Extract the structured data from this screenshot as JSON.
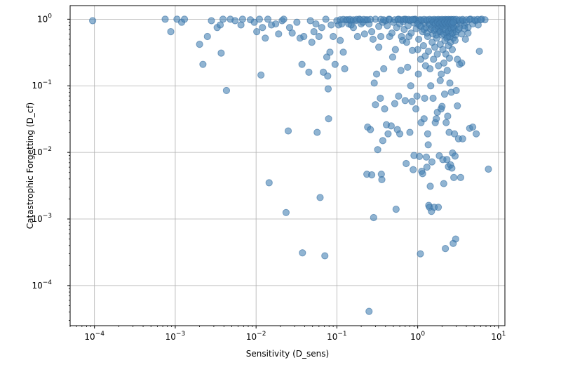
{
  "chart_data": {
    "type": "scatter",
    "xscale": "log",
    "yscale": "log",
    "xlim": [
      5e-05,
      12
    ],
    "ylim": [
      2.5e-05,
      1.6
    ],
    "grid": true,
    "xlabel": "Sensitivity (D_sens)",
    "ylabel": "Catastrophic Forgetting (D_cf)",
    "color": "#4682b4",
    "x_ticks": [
      {
        "value": 0.0001,
        "base": "10",
        "exp": "−4"
      },
      {
        "value": 0.001,
        "base": "10",
        "exp": "−3"
      },
      {
        "value": 0.01,
        "base": "10",
        "exp": "−2"
      },
      {
        "value": 0.1,
        "base": "10",
        "exp": "−1"
      },
      {
        "value": 1,
        "base": "10",
        "exp": "0"
      },
      {
        "value": 10,
        "base": "10",
        "exp": "1"
      }
    ],
    "y_ticks": [
      {
        "value": 0.0001,
        "base": "10",
        "exp": "−4"
      },
      {
        "value": 0.001,
        "base": "10",
        "exp": "−3"
      },
      {
        "value": 0.01,
        "base": "10",
        "exp": "−2"
      },
      {
        "value": 0.1,
        "base": "10",
        "exp": "−1"
      },
      {
        "value": 1,
        "base": "10",
        "exp": "0"
      }
    ],
    "points": [
      [
        9.5e-05,
        0.95
      ],
      [
        0.00075,
        1.0
      ],
      [
        0.00088,
        0.65
      ],
      [
        0.00105,
        1.0
      ],
      [
        0.0012,
        0.9
      ],
      [
        0.0013,
        1.0
      ],
      [
        0.002,
        0.42
      ],
      [
        0.0022,
        0.21
      ],
      [
        0.0025,
        0.55
      ],
      [
        0.0028,
        0.95
      ],
      [
        0.0033,
        0.75
      ],
      [
        0.0036,
        0.82
      ],
      [
        0.0037,
        0.31
      ],
      [
        0.0039,
        1.0
      ],
      [
        0.0043,
        0.085
      ],
      [
        0.0048,
        1.0
      ],
      [
        0.0055,
        0.95
      ],
      [
        0.0065,
        0.82
      ],
      [
        0.0068,
        1.0
      ],
      [
        0.0085,
        0.98
      ],
      [
        0.0095,
        0.9
      ],
      [
        0.0102,
        0.65
      ],
      [
        0.011,
        1.0
      ],
      [
        0.0115,
        0.145
      ],
      [
        0.012,
        0.75
      ],
      [
        0.013,
        0.52
      ],
      [
        0.014,
        1.0
      ],
      [
        0.0145,
        0.0035
      ],
      [
        0.0155,
        0.82
      ],
      [
        0.0175,
        0.85
      ],
      [
        0.019,
        0.6
      ],
      [
        0.021,
        0.95
      ],
      [
        0.022,
        1.0
      ],
      [
        0.0235,
        0.00125
      ],
      [
        0.025,
        0.021
      ],
      [
        0.026,
        0.75
      ],
      [
        0.028,
        0.62
      ],
      [
        0.032,
        0.9
      ],
      [
        0.035,
        0.52
      ],
      [
        0.037,
        0.21
      ],
      [
        0.0375,
        0.00031
      ],
      [
        0.039,
        0.55
      ],
      [
        0.045,
        0.16
      ],
      [
        0.047,
        0.95
      ],
      [
        0.049,
        0.45
      ],
      [
        0.052,
        0.65
      ],
      [
        0.055,
        0.85
      ],
      [
        0.057,
        0.02
      ],
      [
        0.06,
        0.55
      ],
      [
        0.062,
        0.0021
      ],
      [
        0.065,
        0.75
      ],
      [
        0.068,
        0.16
      ],
      [
        0.071,
        0.00028
      ],
      [
        0.073,
        1.0
      ],
      [
        0.075,
        0.27
      ],
      [
        0.077,
        0.14
      ],
      [
        0.078,
        0.09
      ],
      [
        0.079,
        0.032
      ],
      [
        0.082,
        0.32
      ],
      [
        0.085,
        0.82
      ],
      [
        0.09,
        0.55
      ],
      [
        0.095,
        0.21
      ],
      [
        0.1,
        0.95
      ],
      [
        0.105,
        0.82
      ],
      [
        0.11,
        0.48
      ],
      [
        0.115,
        0.85
      ],
      [
        0.12,
        0.32
      ],
      [
        0.125,
        0.18
      ],
      [
        0.13,
        0.98
      ],
      [
        0.14,
        0.85
      ],
      [
        0.15,
        0.95
      ],
      [
        0.16,
        0.75
      ],
      [
        0.18,
        0.55
      ],
      [
        0.2,
        0.85
      ],
      [
        0.22,
        0.6
      ],
      [
        0.235,
        0.0047
      ],
      [
        0.24,
        0.024
      ],
      [
        0.25,
        4.1e-05
      ],
      [
        0.26,
        0.022
      ],
      [
        0.27,
        0.0046
      ],
      [
        0.28,
        0.5
      ],
      [
        0.285,
        0.00105
      ],
      [
        0.29,
        0.11
      ],
      [
        0.3,
        0.052
      ],
      [
        0.31,
        0.15
      ],
      [
        0.32,
        0.011
      ],
      [
        0.33,
        0.38
      ],
      [
        0.345,
        0.065
      ],
      [
        0.355,
        0.0047
      ],
      [
        0.36,
        0.0039
      ],
      [
        0.37,
        0.015
      ],
      [
        0.38,
        0.18
      ],
      [
        0.39,
        0.045
      ],
      [
        0.4,
        0.95
      ],
      [
        0.41,
        0.026
      ],
      [
        0.43,
        0.019
      ],
      [
        0.45,
        0.55
      ],
      [
        0.47,
        0.025
      ],
      [
        0.49,
        0.27
      ],
      [
        0.52,
        0.054
      ],
      [
        0.54,
        0.0014
      ],
      [
        0.56,
        0.022
      ],
      [
        0.58,
        0.07
      ],
      [
        0.6,
        0.019
      ],
      [
        0.62,
        0.17
      ],
      [
        0.65,
        0.48
      ],
      [
        0.7,
        0.06
      ],
      [
        0.72,
        0.0068
      ],
      [
        0.75,
        0.19
      ],
      [
        0.78,
        0.55
      ],
      [
        0.8,
        0.02
      ],
      [
        0.82,
        0.1
      ],
      [
        0.85,
        0.058
      ],
      [
        0.88,
        0.0055
      ],
      [
        0.9,
        0.009
      ],
      [
        0.95,
        0.045
      ],
      [
        0.98,
        0.07
      ],
      [
        1.0,
        0.35
      ],
      [
        1.02,
        0.15
      ],
      [
        1.05,
        0.0087
      ],
      [
        1.08,
        0.0003
      ],
      [
        1.1,
        0.028
      ],
      [
        1.12,
        0.0052
      ],
      [
        1.15,
        0.0048
      ],
      [
        1.2,
        0.032
      ],
      [
        1.22,
        0.065
      ],
      [
        1.25,
        0.2
      ],
      [
        1.28,
        0.0085
      ],
      [
        1.3,
        0.006
      ],
      [
        1.33,
        0.019
      ],
      [
        1.35,
        0.013
      ],
      [
        1.37,
        0.0016
      ],
      [
        1.4,
        0.0015
      ],
      [
        1.43,
        0.0031
      ],
      [
        1.45,
        0.1
      ],
      [
        1.48,
        0.0013
      ],
      [
        1.5,
        0.0072
      ],
      [
        1.55,
        0.065
      ],
      [
        1.6,
        0.0015
      ],
      [
        1.65,
        0.028
      ],
      [
        1.7,
        0.032
      ],
      [
        1.75,
        0.04
      ],
      [
        1.8,
        0.0015
      ],
      [
        1.85,
        0.0089
      ],
      [
        1.9,
        0.12
      ],
      [
        1.95,
        0.045
      ],
      [
        2.0,
        0.049
      ],
      [
        2.05,
        0.0078
      ],
      [
        2.1,
        0.0034
      ],
      [
        2.15,
        0.075
      ],
      [
        2.2,
        0.00036
      ],
      [
        2.25,
        0.028
      ],
      [
        2.3,
        0.0078
      ],
      [
        2.35,
        0.035
      ],
      [
        2.4,
        0.0061
      ],
      [
        2.45,
        0.02
      ],
      [
        2.5,
        0.11
      ],
      [
        2.55,
        0.0065
      ],
      [
        2.6,
        0.08
      ],
      [
        2.65,
        0.0058
      ],
      [
        2.7,
        0.0098
      ],
      [
        2.75,
        0.00043
      ],
      [
        2.8,
        0.0042
      ],
      [
        2.85,
        0.019
      ],
      [
        2.9,
        0.0088
      ],
      [
        2.95,
        0.0005
      ],
      [
        3.0,
        0.085
      ],
      [
        3.1,
        0.05
      ],
      [
        3.2,
        0.016
      ],
      [
        3.3,
        0.21
      ],
      [
        3.4,
        0.0042
      ],
      [
        3.6,
        0.016
      ],
      [
        3.9,
        0.5
      ],
      [
        4.2,
        0.62
      ],
      [
        4.4,
        0.023
      ],
      [
        4.8,
        0.024
      ],
      [
        5.3,
        0.019
      ],
      [
        5.8,
        0.33
      ],
      [
        7.5,
        0.0056
      ],
      [
        0.15,
        0.82
      ],
      [
        0.17,
        0.95
      ],
      [
        0.19,
        1.0
      ],
      [
        0.21,
        0.9
      ],
      [
        0.23,
        0.98
      ],
      [
        0.25,
        0.85
      ],
      [
        0.27,
        0.65
      ],
      [
        0.3,
        1.0
      ],
      [
        0.33,
        0.78
      ],
      [
        0.35,
        0.55
      ],
      [
        0.37,
        0.9
      ],
      [
        0.42,
        0.8
      ],
      [
        0.44,
        1.0
      ],
      [
        0.48,
        0.62
      ],
      [
        0.5,
        0.9
      ],
      [
        0.53,
        0.35
      ],
      [
        0.55,
        0.75
      ],
      [
        0.58,
        1.0
      ],
      [
        0.6,
        0.85
      ],
      [
        0.63,
        0.55
      ],
      [
        0.66,
        0.92
      ],
      [
        0.68,
        0.7
      ],
      [
        0.7,
        1.0
      ],
      [
        0.73,
        0.45
      ],
      [
        0.76,
        0.8
      ],
      [
        0.8,
        0.95
      ],
      [
        0.83,
        0.62
      ],
      [
        0.86,
        0.34
      ],
      [
        0.9,
        0.88
      ],
      [
        0.93,
        1.0
      ],
      [
        0.96,
        0.72
      ],
      [
        1.0,
        0.92
      ],
      [
        1.03,
        0.5
      ],
      [
        1.06,
        0.8
      ],
      [
        1.09,
        0.25
      ],
      [
        1.12,
        0.95
      ],
      [
        1.15,
        0.65
      ],
      [
        1.18,
        0.4
      ],
      [
        1.21,
        0.88
      ],
      [
        1.24,
        0.28
      ],
      [
        1.27,
        0.75
      ],
      [
        1.3,
        0.95
      ],
      [
        1.33,
        0.55
      ],
      [
        1.36,
        0.33
      ],
      [
        1.39,
        0.85
      ],
      [
        1.42,
        0.18
      ],
      [
        1.45,
        0.7
      ],
      [
        1.48,
        0.95
      ],
      [
        1.51,
        0.45
      ],
      [
        1.54,
        0.6
      ],
      [
        1.57,
        0.25
      ],
      [
        1.6,
        0.88
      ],
      [
        1.63,
        0.38
      ],
      [
        1.66,
        0.72
      ],
      [
        1.69,
        0.95
      ],
      [
        1.72,
        0.52
      ],
      [
        1.75,
        0.3
      ],
      [
        1.78,
        0.8
      ],
      [
        1.81,
        0.2
      ],
      [
        1.84,
        0.65
      ],
      [
        1.87,
        0.95
      ],
      [
        1.9,
        0.42
      ],
      [
        1.93,
        0.75
      ],
      [
        1.96,
        0.15
      ],
      [
        1.99,
        0.58
      ],
      [
        2.02,
        0.88
      ],
      [
        2.05,
        0.35
      ],
      [
        2.08,
        0.7
      ],
      [
        2.11,
        0.22
      ],
      [
        2.14,
        0.95
      ],
      [
        2.17,
        0.48
      ],
      [
        2.2,
        0.8
      ],
      [
        2.23,
        0.3
      ],
      [
        2.26,
        0.62
      ],
      [
        2.29,
        0.9
      ],
      [
        2.32,
        0.17
      ],
      [
        2.35,
        0.55
      ],
      [
        2.38,
        0.75
      ],
      [
        2.41,
        0.4
      ],
      [
        2.44,
        0.95
      ],
      [
        2.47,
        0.26
      ],
      [
        2.5,
        0.68
      ],
      [
        2.53,
        0.85
      ],
      [
        2.56,
        0.45
      ],
      [
        2.6,
        0.6
      ],
      [
        2.64,
        0.95
      ],
      [
        2.68,
        0.35
      ],
      [
        2.72,
        0.78
      ],
      [
        2.76,
        0.52
      ],
      [
        2.8,
        0.9
      ],
      [
        2.85,
        0.7
      ],
      [
        2.9,
        0.95
      ],
      [
        2.95,
        0.58
      ],
      [
        3.0,
        0.82
      ],
      [
        3.1,
        0.25
      ],
      [
        3.2,
        0.95
      ],
      [
        3.3,
        0.75
      ],
      [
        3.4,
        0.88
      ],
      [
        3.5,
        0.22
      ],
      [
        3.6,
        0.95
      ],
      [
        3.8,
        0.8
      ],
      [
        4.0,
        0.9
      ],
      [
        4.2,
        0.75
      ],
      [
        4.5,
        1.0
      ],
      [
        4.8,
        0.85
      ],
      [
        5.2,
        0.95
      ],
      [
        5.6,
        0.82
      ],
      [
        6.2,
        1.0
      ],
      [
        6.8,
        0.98
      ],
      [
        0.9,
        0.98
      ],
      [
        0.95,
        0.98
      ],
      [
        1.05,
        0.98
      ],
      [
        1.1,
        0.98
      ],
      [
        1.2,
        0.99
      ],
      [
        1.3,
        0.98
      ],
      [
        1.4,
        0.99
      ],
      [
        1.5,
        0.98
      ],
      [
        1.6,
        0.99
      ],
      [
        1.7,
        0.98
      ],
      [
        1.8,
        0.99
      ],
      [
        1.9,
        0.98
      ],
      [
        2.0,
        0.99
      ],
      [
        2.1,
        0.98
      ],
      [
        2.2,
        0.99
      ],
      [
        2.3,
        0.98
      ],
      [
        2.4,
        0.99
      ],
      [
        2.5,
        0.98
      ],
      [
        2.6,
        0.99
      ],
      [
        2.7,
        0.98
      ],
      [
        2.8,
        0.99
      ],
      [
        3.0,
        0.99
      ],
      [
        3.3,
        0.98
      ],
      [
        3.6,
        0.99
      ],
      [
        4.0,
        0.98
      ],
      [
        4.4,
        0.99
      ],
      [
        5.0,
        0.98
      ],
      [
        5.5,
        0.99
      ],
      [
        6.0,
        0.98
      ],
      [
        1.0,
        0.85
      ],
      [
        1.1,
        0.78
      ],
      [
        1.2,
        0.7
      ],
      [
        1.3,
        0.62
      ],
      [
        1.4,
        0.82
      ],
      [
        1.5,
        0.75
      ],
      [
        1.6,
        0.68
      ],
      [
        1.7,
        0.58
      ],
      [
        1.8,
        0.72
      ],
      [
        1.9,
        0.65
      ],
      [
        2.0,
        0.78
      ],
      [
        2.1,
        0.6
      ],
      [
        2.2,
        0.7
      ],
      [
        2.3,
        0.52
      ],
      [
        2.4,
        0.65
      ],
      [
        2.5,
        0.55
      ],
      [
        2.6,
        0.72
      ],
      [
        2.7,
        0.62
      ],
      [
        2.8,
        0.75
      ],
      [
        2.9,
        0.48
      ],
      [
        3.0,
        0.65
      ],
      [
        3.2,
        0.7
      ],
      [
        3.5,
        0.6
      ],
      [
        3.8,
        0.72
      ],
      [
        1.55,
        0.9
      ],
      [
        1.65,
        0.85
      ],
      [
        1.75,
        0.9
      ],
      [
        1.85,
        0.85
      ],
      [
        1.95,
        0.9
      ],
      [
        2.05,
        0.85
      ],
      [
        2.15,
        0.9
      ],
      [
        2.25,
        0.85
      ],
      [
        2.35,
        0.9
      ],
      [
        2.45,
        0.85
      ],
      [
        2.55,
        0.9
      ],
      [
        2.65,
        0.85
      ],
      [
        2.75,
        0.9
      ],
      [
        0.35,
        0.99
      ],
      [
        0.38,
        0.98
      ],
      [
        0.45,
        0.99
      ],
      [
        0.52,
        0.98
      ],
      [
        0.57,
        0.99
      ],
      [
        0.62,
        0.98
      ],
      [
        0.67,
        0.99
      ],
      [
        0.72,
        0.98
      ],
      [
        0.77,
        0.99
      ],
      [
        0.82,
        0.98
      ],
      [
        0.87,
        0.99
      ],
      [
        0.11,
        0.98
      ],
      [
        0.12,
        0.99
      ],
      [
        0.135,
        0.98
      ],
      [
        0.145,
        0.99
      ],
      [
        0.16,
        0.98
      ],
      [
        0.175,
        0.99
      ],
      [
        0.195,
        0.98
      ],
      [
        0.215,
        0.99
      ],
      [
        0.24,
        0.98
      ],
      [
        0.26,
        0.99
      ]
    ]
  }
}
